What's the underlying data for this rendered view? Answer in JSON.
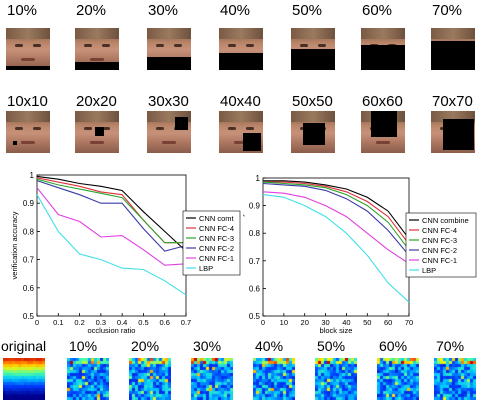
{
  "occlusion_labels": [
    "10%",
    "20%",
    "30%",
    "40%",
    "50%",
    "60%",
    "70%"
  ],
  "occlusion_fractions": [
    0.1,
    0.2,
    0.3,
    0.4,
    0.5,
    0.6,
    0.7
  ],
  "block_labels": [
    "10x10",
    "20x20",
    "30x30",
    "40x40",
    "50x50",
    "60x60",
    "70x70"
  ],
  "block_sizes": [
    10,
    20,
    30,
    40,
    50,
    60,
    70
  ],
  "heatmap_labels": [
    "original",
    "10%",
    "20%",
    "30%",
    "40%",
    "50%",
    "60%",
    "70%"
  ],
  "chart_data": [
    {
      "type": "line",
      "xlabel": "occlusion ratio",
      "ylabel": "verification accuracy",
      "x": [
        0,
        0.1,
        0.2,
        0.3,
        0.4,
        0.5,
        0.6,
        0.7
      ],
      "xticks": [
        "0",
        "0.1",
        "0.2",
        "0.3",
        "0.4",
        "0.5",
        "0.6",
        "0.7"
      ],
      "xlim": [
        0,
        0.7
      ],
      "yticks": [
        "0.5",
        "0.6",
        "0.7",
        "0.8",
        "0.9",
        "1"
      ],
      "ylim": [
        0.5,
        1
      ],
      "legend_position": "right",
      "series": [
        {
          "name": "CNN comt",
          "color": "#000000",
          "values": [
            0.995,
            0.985,
            0.97,
            0.96,
            0.945,
            0.87,
            0.8,
            0.73
          ]
        },
        {
          "name": "CNN FC-4",
          "color": "#e0303a",
          "values": [
            0.99,
            0.975,
            0.96,
            0.94,
            0.93,
            0.84,
            0.76,
            0.76
          ]
        },
        {
          "name": "CNN FC-3",
          "color": "#2aa82a",
          "values": [
            0.985,
            0.965,
            0.95,
            0.935,
            0.92,
            0.84,
            0.76,
            0.76
          ]
        },
        {
          "name": "CNN FC-2",
          "color": "#3a3aa8",
          "values": [
            0.98,
            0.955,
            0.93,
            0.9,
            0.9,
            0.81,
            0.73,
            0.75
          ]
        },
        {
          "name": "CNN FC-1",
          "color": "#e040e0",
          "values": [
            0.955,
            0.86,
            0.835,
            0.78,
            0.785,
            0.735,
            0.68,
            0.685
          ]
        },
        {
          "name": "LBP",
          "color": "#40e0e8",
          "values": [
            0.93,
            0.8,
            0.72,
            0.7,
            0.67,
            0.665,
            0.625,
            0.575
          ]
        }
      ]
    },
    {
      "type": "line",
      "xlabel": "block size",
      "ylabel": "verification accuracy",
      "x": [
        0,
        10,
        20,
        30,
        40,
        50,
        60,
        70
      ],
      "xticks": [
        "0",
        "10",
        "20",
        "30",
        "40",
        "50",
        "60",
        "70"
      ],
      "xlim": [
        0,
        70
      ],
      "yticks": [
        "0.5",
        "0.6",
        "0.7",
        "0.8",
        "0.9",
        "1"
      ],
      "ylim": [
        0.5,
        1
      ],
      "legend_position": "right",
      "series": [
        {
          "name": "CNN combine",
          "color": "#000000",
          "values": [
            0.99,
            0.99,
            0.985,
            0.975,
            0.96,
            0.93,
            0.88,
            0.78
          ]
        },
        {
          "name": "CNN FC-4",
          "color": "#e0303a",
          "values": [
            0.985,
            0.985,
            0.98,
            0.97,
            0.95,
            0.915,
            0.86,
            0.76
          ]
        },
        {
          "name": "CNN FC-3",
          "color": "#2aa82a",
          "values": [
            0.985,
            0.98,
            0.975,
            0.965,
            0.94,
            0.9,
            0.84,
            0.74
          ]
        },
        {
          "name": "CNN FC-2",
          "color": "#3a3aa8",
          "values": [
            0.98,
            0.975,
            0.97,
            0.955,
            0.925,
            0.88,
            0.81,
            0.72
          ]
        },
        {
          "name": "CNN FC-1",
          "color": "#e040e0",
          "values": [
            0.95,
            0.945,
            0.93,
            0.9,
            0.86,
            0.8,
            0.74,
            0.69
          ]
        },
        {
          "name": "LBP",
          "color": "#40e0e8",
          "values": [
            0.94,
            0.93,
            0.9,
            0.86,
            0.8,
            0.72,
            0.62,
            0.55
          ]
        }
      ]
    }
  ]
}
